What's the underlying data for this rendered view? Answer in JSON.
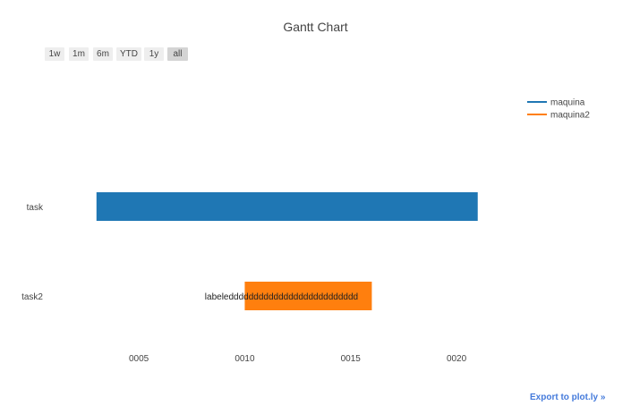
{
  "chart_data": {
    "type": "gantt",
    "title": "Gantt Chart",
    "xlabel": "",
    "ylabel": "",
    "x_ticks": [
      "0005",
      "0010",
      "0015",
      "0020"
    ],
    "x_tick_values": [
      5,
      10,
      15,
      20
    ],
    "xlim": [
      0.6,
      23.8
    ],
    "categories": [
      "task",
      "task2"
    ],
    "series": [
      {
        "name": "maquina",
        "task": "task",
        "start": 3,
        "end": 21,
        "color": "#1f77b4"
      },
      {
        "name": "maquina2",
        "task": "task2",
        "start": 10,
        "end": 16,
        "color": "#ff7f0e",
        "label": "labeledddddddddddddddddddddddddd"
      }
    ],
    "legend_position": "top-right",
    "grid": false
  },
  "range_selector": {
    "buttons": [
      {
        "label": "1w",
        "active": false
      },
      {
        "label": "1m",
        "active": false
      },
      {
        "label": "6m",
        "active": false
      },
      {
        "label": "YTD",
        "active": false
      },
      {
        "label": "1y",
        "active": false
      },
      {
        "label": "all",
        "active": true
      }
    ]
  },
  "export_link": {
    "label": "Export to plot.ly »"
  }
}
